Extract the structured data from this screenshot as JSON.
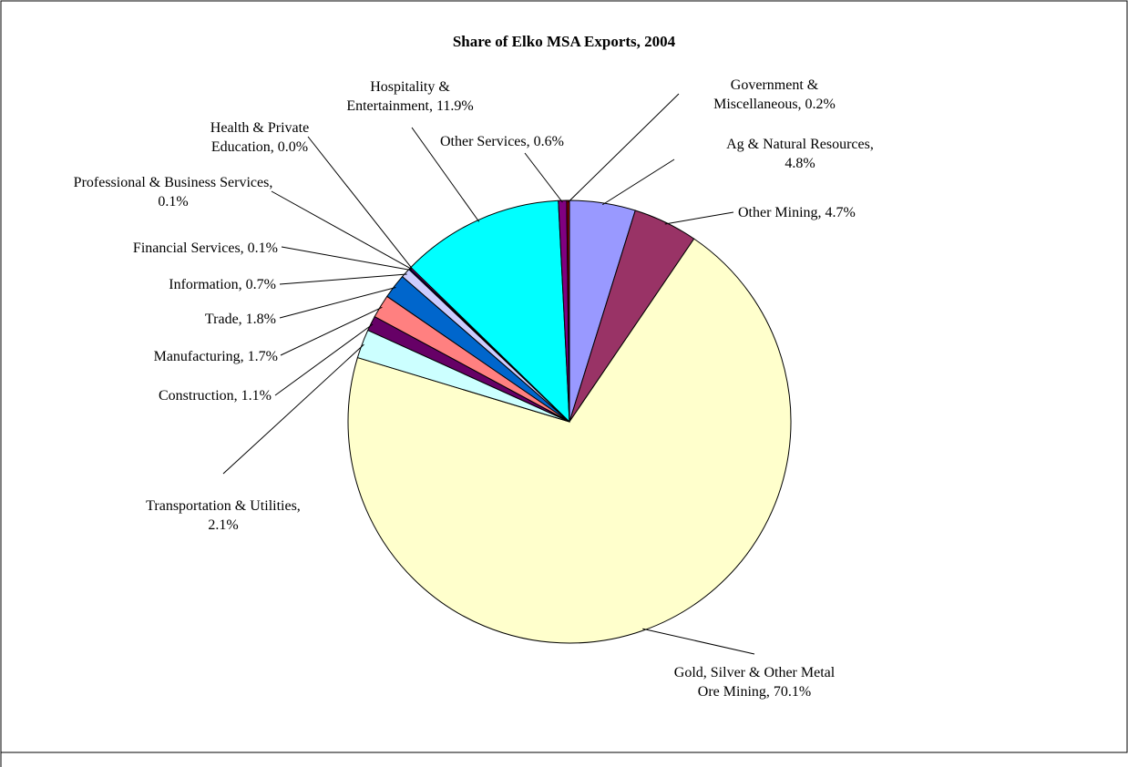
{
  "chart_data": {
    "type": "pie",
    "title": "Share of Elko MSA Exports, 2004",
    "categories": [
      "Ag & Natural Resources",
      "Other Mining",
      "Gold, Silver & Other Metal Ore Mining",
      "Transportation & Utilities",
      "Construction",
      "Manufacturing",
      "Trade",
      "Information",
      "Financial Services",
      "Professional & Business Services",
      "Health & Private Education",
      "Hospitality & Entertainment",
      "Other Services",
      "Government & Miscellaneous"
    ],
    "values": [
      4.8,
      4.7,
      70.1,
      2.1,
      1.1,
      1.7,
      1.8,
      0.7,
      0.1,
      0.1,
      0.0,
      11.9,
      0.6,
      0.2
    ],
    "value_labels": [
      "Ag & Natural Resources, 4.8%",
      "Other Mining, 4.7%",
      "Gold, Silver & Other Metal Ore Mining, 70.1%",
      "Transportation & Utilities, 2.1%",
      "Construction, 1.1%",
      "Manufacturing, 1.7%",
      "Trade, 1.8%",
      "Information, 0.7%",
      "Financial Services, 0.1%",
      "Professional & Business Services, 0.1%",
      "Health & Private Education, 0.0%",
      "Hospitality & Entertainment, 11.9%",
      "Other Services, 0.6%",
      "Government & Miscellaneous, 0.2%"
    ],
    "colors": [
      "#9999ff",
      "#993366",
      "#ffffcc",
      "#ccffff",
      "#660066",
      "#ff8080",
      "#0066cc",
      "#ccccff",
      "#000080",
      "#ff00ff",
      "#ffff00",
      "#00ffff",
      "#800080",
      "#800000"
    ]
  }
}
